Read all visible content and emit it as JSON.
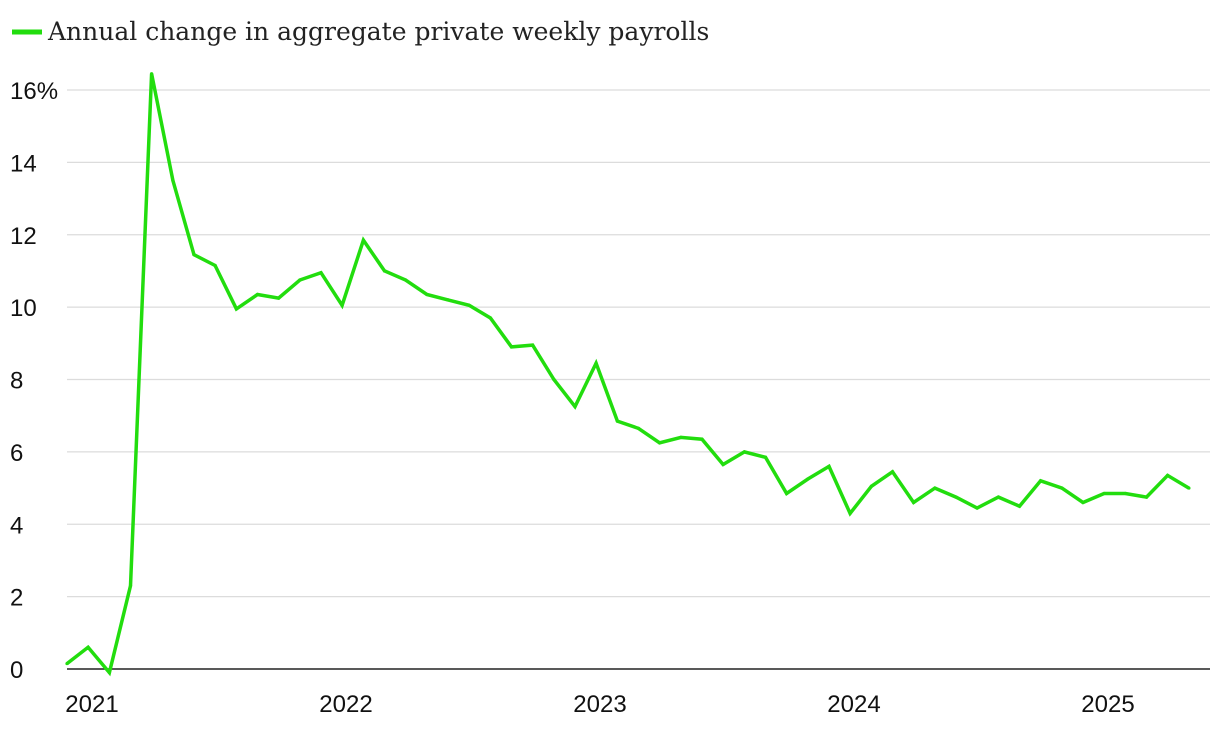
{
  "chart_data": {
    "type": "line",
    "title": "",
    "xlabel": "",
    "ylabel": "",
    "legend": {
      "position": "top-left"
    },
    "grid": true,
    "ylim": [
      0,
      16
    ],
    "yticks": [
      0,
      2,
      4,
      6,
      8,
      10,
      12,
      14,
      16
    ],
    "ytick_labels": [
      "0",
      "2",
      "4",
      "6",
      "8",
      "10",
      "12",
      "14",
      "16%"
    ],
    "xlim": [
      2021.0,
      2025.5
    ],
    "xticks": [
      2021,
      2022,
      2023,
      2024,
      2025
    ],
    "xtick_labels": [
      "2021",
      "2022",
      "2023",
      "2024",
      "2025"
    ],
    "series": [
      {
        "name": "Annual change in aggregate private weekly payrolls",
        "color": "#22dd0e",
        "x": [
          2021.0,
          2021.083,
          2021.167,
          2021.25,
          2021.333,
          2021.417,
          2021.5,
          2021.583,
          2021.667,
          2021.75,
          2021.833,
          2021.917,
          2022.0,
          2022.083,
          2022.167,
          2022.25,
          2022.333,
          2022.417,
          2022.5,
          2022.583,
          2022.667,
          2022.75,
          2022.833,
          2022.917,
          2023.0,
          2023.083,
          2023.167,
          2023.25,
          2023.333,
          2023.417,
          2023.5,
          2023.583,
          2023.667,
          2023.75,
          2023.833,
          2023.917,
          2024.0,
          2024.083,
          2024.167,
          2024.25,
          2024.333,
          2024.417,
          2024.5,
          2024.583,
          2024.667,
          2024.75,
          2024.833,
          2024.917,
          2025.0,
          2025.083,
          2025.167,
          2025.25,
          2025.333,
          2025.417
        ],
        "values": [
          0.15,
          0.6,
          -0.1,
          2.3,
          16.45,
          13.5,
          11.45,
          11.15,
          9.95,
          10.35,
          10.25,
          10.75,
          10.95,
          10.05,
          11.85,
          11.0,
          10.75,
          10.35,
          10.2,
          10.05,
          9.7,
          8.9,
          8.95,
          8.0,
          7.25,
          8.45,
          6.85,
          6.65,
          6.25,
          6.4,
          6.35,
          5.65,
          6.0,
          5.85,
          4.85,
          5.25,
          5.6,
          4.3,
          5.05,
          5.45,
          4.6,
          5.0,
          4.75,
          4.45,
          4.75,
          4.5,
          5.2,
          5.0,
          4.6,
          4.85,
          4.85,
          4.75,
          5.35,
          5.0
        ]
      }
    ]
  }
}
